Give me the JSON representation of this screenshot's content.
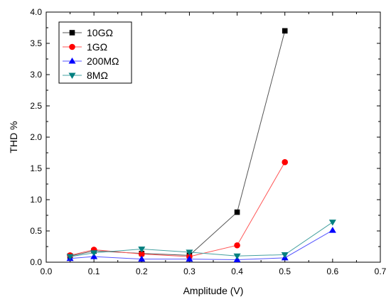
{
  "chart_data": {
    "type": "line",
    "xlabel": "Amplitude (V)",
    "ylabel": "THD %",
    "xlim": [
      0.0,
      0.7
    ],
    "ylim": [
      0.0,
      4.0
    ],
    "x_ticks": [
      "0.0",
      "0.1",
      "0.2",
      "0.3",
      "0.4",
      "0.5",
      "0.6",
      "0.7"
    ],
    "y_ticks": [
      "0.0",
      "0.5",
      "1.0",
      "1.5",
      "2.0",
      "2.5",
      "3.0",
      "3.5",
      "4.0"
    ],
    "grid": false,
    "legend_position": "top-left",
    "series": [
      {
        "name": "10GΩ",
        "marker": "square",
        "marker_color": "#000000",
        "line_color": "#555555",
        "x": [
          0.05,
          0.1,
          0.2,
          0.3,
          0.4,
          0.5
        ],
        "y": [
          0.1,
          0.18,
          0.14,
          0.11,
          0.8,
          3.7
        ]
      },
      {
        "name": "1GΩ",
        "marker": "circle",
        "marker_color": "#ff0000",
        "line_color": "#ff5555",
        "x": [
          0.05,
          0.1,
          0.2,
          0.3,
          0.4,
          0.5
        ],
        "y": [
          0.11,
          0.2,
          0.13,
          0.09,
          0.27,
          1.6
        ]
      },
      {
        "name": "200MΩ",
        "marker": "triangle-up",
        "marker_color": "#0000ff",
        "line_color": "#5555ff",
        "x": [
          0.05,
          0.1,
          0.2,
          0.3,
          0.4,
          0.5,
          0.6
        ],
        "y": [
          0.06,
          0.09,
          0.05,
          0.05,
          0.04,
          0.07,
          0.51
        ]
      },
      {
        "name": "8MΩ",
        "marker": "triangle-down",
        "marker_color": "#008080",
        "line_color": "#44a0a0",
        "x": [
          0.05,
          0.1,
          0.2,
          0.3,
          0.4,
          0.5,
          0.6
        ],
        "y": [
          0.09,
          0.15,
          0.21,
          0.16,
          0.1,
          0.12,
          0.64
        ]
      }
    ]
  }
}
